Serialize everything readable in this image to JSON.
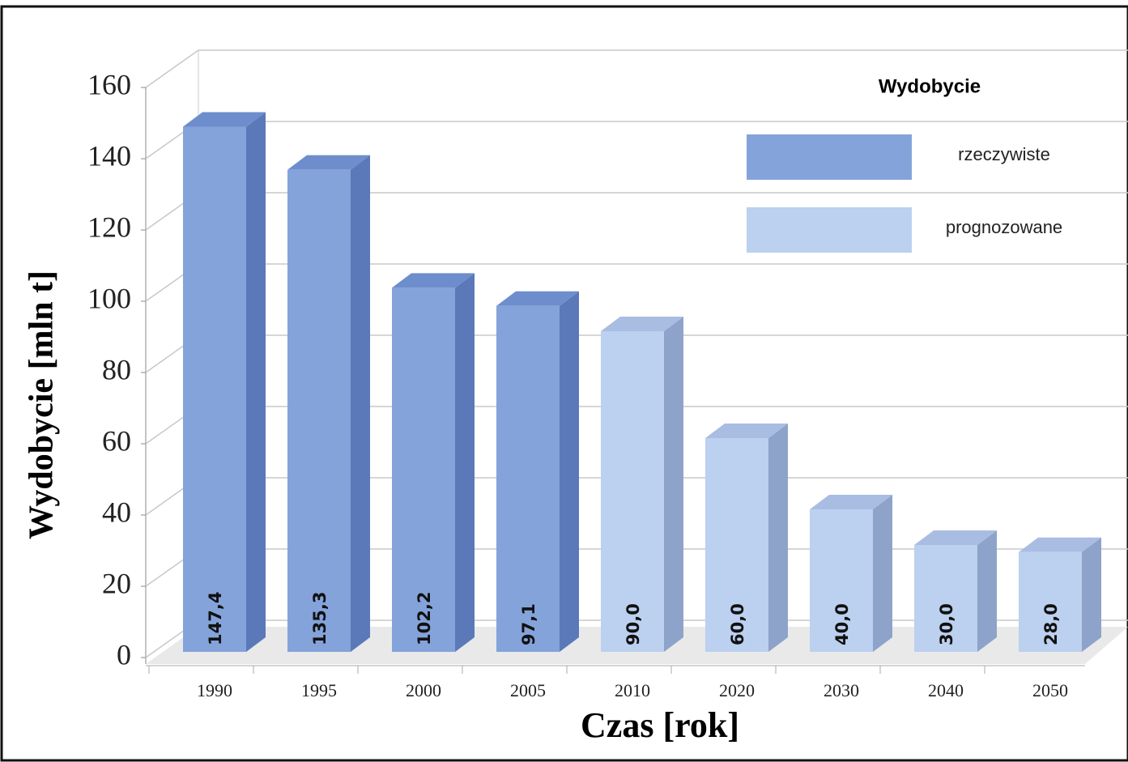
{
  "chart_data": {
    "type": "bar",
    "legend_title": "Wydobycie",
    "xlabel": "Czas [rok]",
    "ylabel": "Wydobycie [mln t]",
    "categories": [
      "1990",
      "1995",
      "2000",
      "2005",
      "2010",
      "2020",
      "2030",
      "2040",
      "2050"
    ],
    "series": [
      {
        "name": "rzeczywiste",
        "color": "#84a3da",
        "side": "#5b79b9",
        "top": "#6d8dcc",
        "values": [
          147.4,
          135.3,
          102.2,
          97.1,
          null,
          null,
          null,
          null,
          null
        ],
        "value_labels": [
          "147,4",
          "135,3",
          "102,2",
          "97,1",
          null,
          null,
          null,
          null,
          null
        ]
      },
      {
        "name": "prognozowane",
        "color": "#bcd0ef",
        "side": "#8ea3c9",
        "top": "#a9bde3",
        "values": [
          null,
          null,
          null,
          null,
          90,
          60,
          40,
          30,
          28
        ],
        "value_labels": [
          null,
          null,
          null,
          null,
          "90,0",
          "60,0",
          "40,0",
          "30,0",
          "28,0"
        ]
      }
    ],
    "ylim": [
      0,
      160
    ],
    "yticks": [
      0,
      20,
      40,
      60,
      80,
      100,
      120,
      140,
      160
    ],
    "grid": true
  }
}
